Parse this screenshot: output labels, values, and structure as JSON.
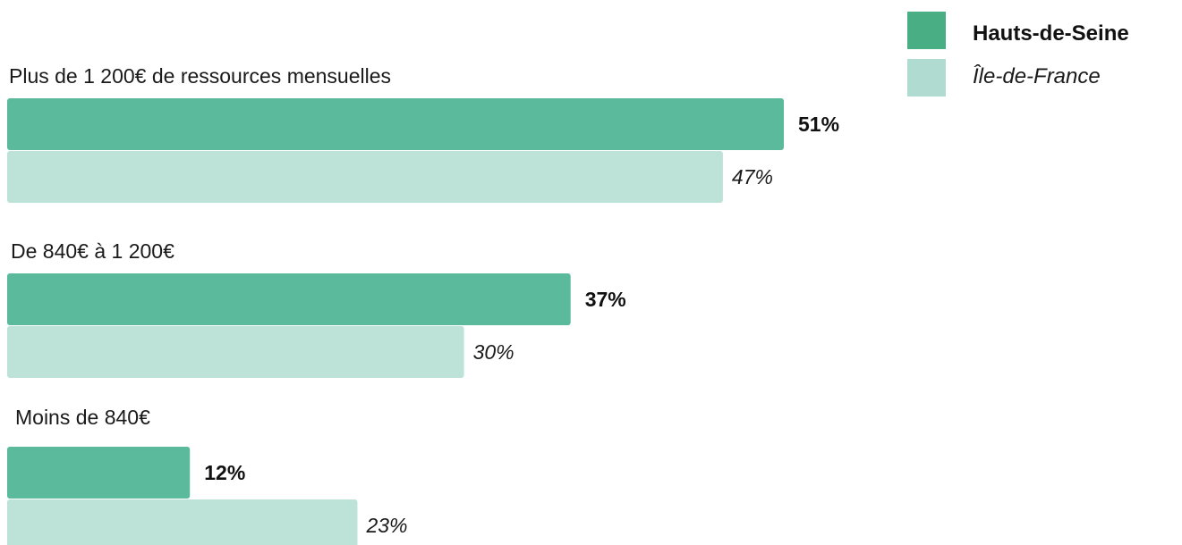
{
  "chart_data": {
    "type": "bar",
    "orientation": "horizontal",
    "title": "",
    "xlabel": "",
    "ylabel": "",
    "categories": [
      "Plus de 1 200€ de ressources mensuelles",
      "De 840€ à 1 200€",
      "Moins de 840€"
    ],
    "series": [
      {
        "name": "Hauts-de-Seine",
        "values": [
          51,
          37,
          12
        ],
        "labels": [
          "51%",
          "37%",
          "12%"
        ],
        "color": "#5bba9c"
      },
      {
        "name": "Île-de-France",
        "values": [
          47,
          30,
          23
        ],
        "labels": [
          "47%",
          "30%",
          "23%"
        ],
        "color": "#bde2d8"
      }
    ],
    "value_unit": "%",
    "xlim": [
      0,
      51
    ],
    "grid": false,
    "legend_position": "top-right",
    "legend_swatch_colors": [
      "#49ae84",
      "#b0dbd0"
    ]
  }
}
